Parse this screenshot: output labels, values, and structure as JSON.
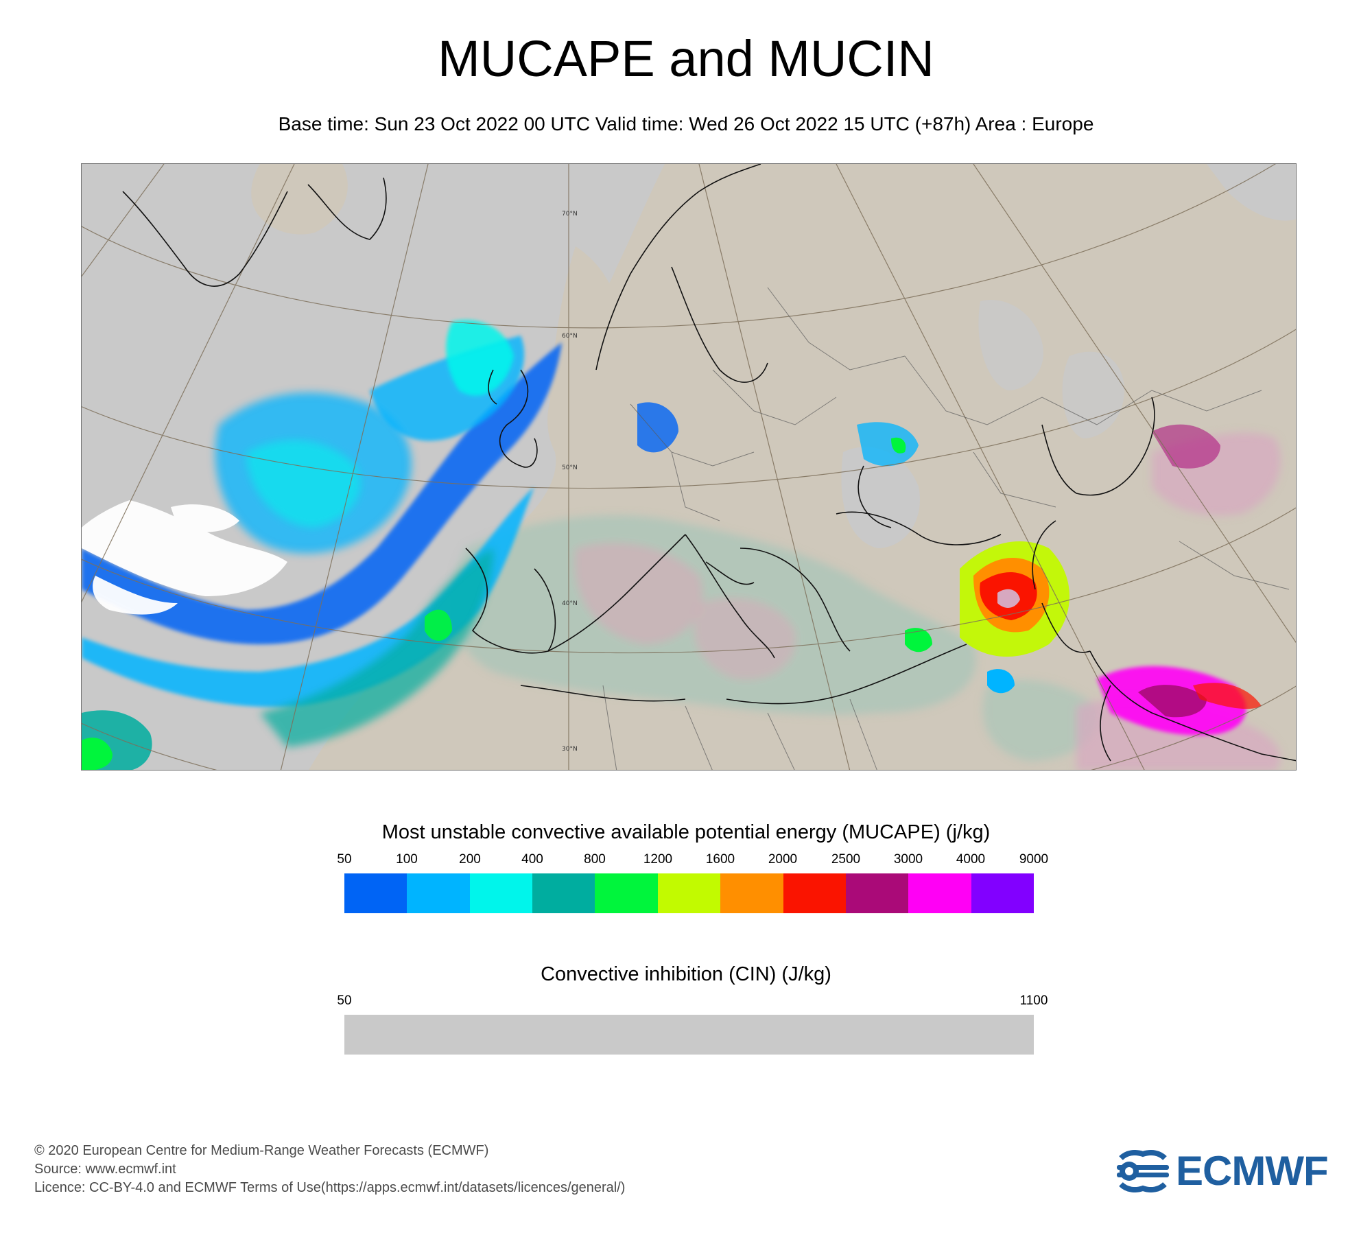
{
  "header": {
    "title": "MUCAPE and MUCIN",
    "subtitle": "Base time: Sun 23 Oct 2022 00 UTC Valid time: Wed 26 Oct 2022 15 UTC (+87h) Area : Europe"
  },
  "map": {
    "area": "Europe",
    "parallel_labels": [
      "70°N",
      "60°N",
      "50°N",
      "40°N",
      "30°N"
    ],
    "colors": {
      "land": "#cfc8bb",
      "sea_no_cape": "#c9c9c9",
      "coast": "#111111",
      "graticule": "#7d6f5a"
    }
  },
  "legend_mucape": {
    "title": "Most unstable convective available potential energy (MUCAPE) (j/kg)",
    "ticks": [
      "50",
      "100",
      "200",
      "400",
      "800",
      "1200",
      "1600",
      "2000",
      "2500",
      "3000",
      "4000",
      "9000"
    ],
    "colors": [
      "#0064f5",
      "#00b4ff",
      "#00f5eb",
      "#00ad9f",
      "#00f53c",
      "#c2fa00",
      "#ff8f00",
      "#fa1400",
      "#aa0a78",
      "#ff00f5",
      "#8200ff"
    ]
  },
  "legend_cin": {
    "title": "Convective inhibition (CIN) (J/kg)",
    "ticks": [
      "50",
      "1100"
    ],
    "color": "#c9c9c9"
  },
  "footer": {
    "lines": [
      "© 2020 European Centre for Medium-Range Weather Forecasts (ECMWF)",
      "Source: www.ecmwf.int",
      "Licence: CC-BY-4.0 and ECMWF Terms of Use(https://apps.ecmwf.int/datasets/licences/general/)"
    ],
    "logo_text": "ECMWF",
    "logo_color": "#1f5fa0"
  }
}
